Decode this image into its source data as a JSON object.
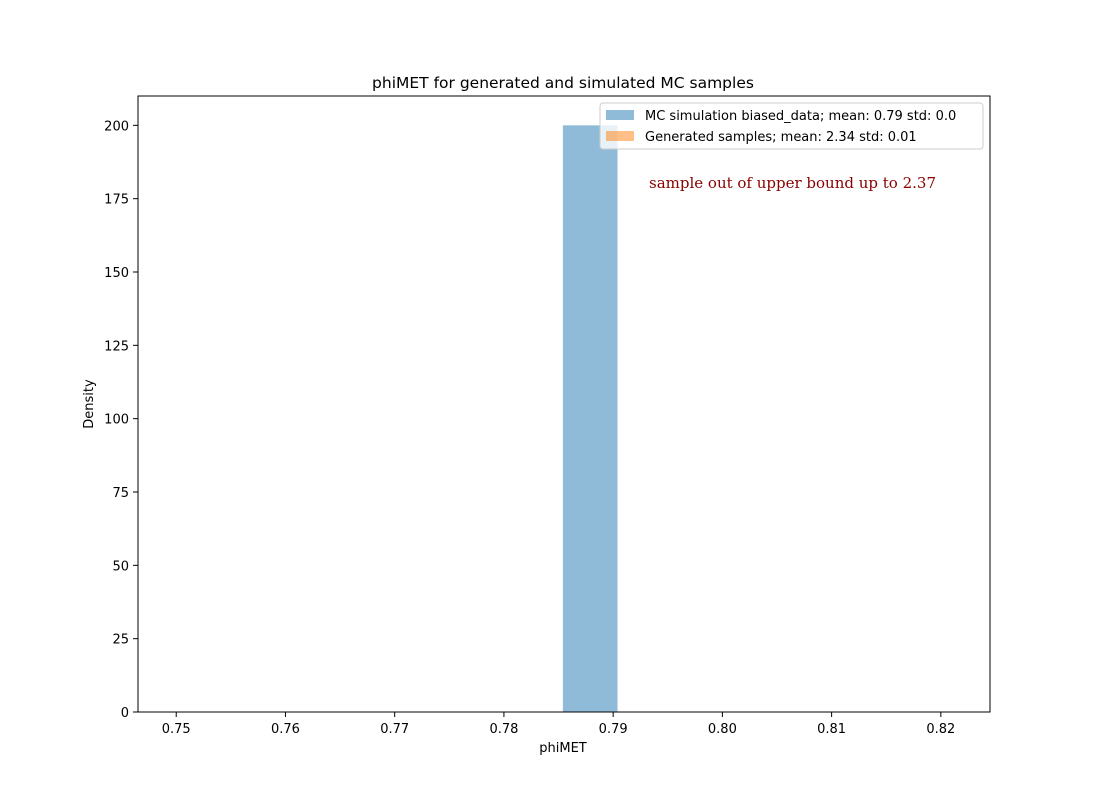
{
  "chart_data": {
    "type": "bar",
    "title": "phiMET for generated and simulated MC samples",
    "xlabel": "phiMET",
    "ylabel": "Density",
    "xlim": [
      0.7465,
      0.8245
    ],
    "ylim": [
      0,
      210
    ],
    "xticks": [
      0.75,
      0.76,
      0.77,
      0.78,
      0.79,
      0.8,
      0.81,
      0.82
    ],
    "xtick_labels": [
      "0.75",
      "0.76",
      "0.77",
      "0.78",
      "0.79",
      "0.80",
      "0.81",
      "0.82"
    ],
    "yticks": [
      0,
      25,
      50,
      75,
      100,
      125,
      150,
      175,
      200
    ],
    "ytick_labels": [
      "0",
      "25",
      "50",
      "75",
      "100",
      "125",
      "150",
      "175",
      "200"
    ],
    "grid": false,
    "legend_position": "upper-right",
    "series": [
      {
        "name": "MC simulation biased_data; mean: 0.79 std: 0.0",
        "color": "#1f77b4",
        "alpha": 0.5,
        "bins": [
          {
            "x0": 0.7854,
            "x1": 0.7904,
            "value": 200
          }
        ]
      },
      {
        "name": "Generated samples; mean: 2.34 std: 0.01",
        "color": "#ff7f0e",
        "alpha": 0.5,
        "bins": []
      }
    ],
    "annotations": [
      {
        "text": "sample out of upper bound up to 2.37",
        "color": "#8b0000"
      }
    ]
  }
}
